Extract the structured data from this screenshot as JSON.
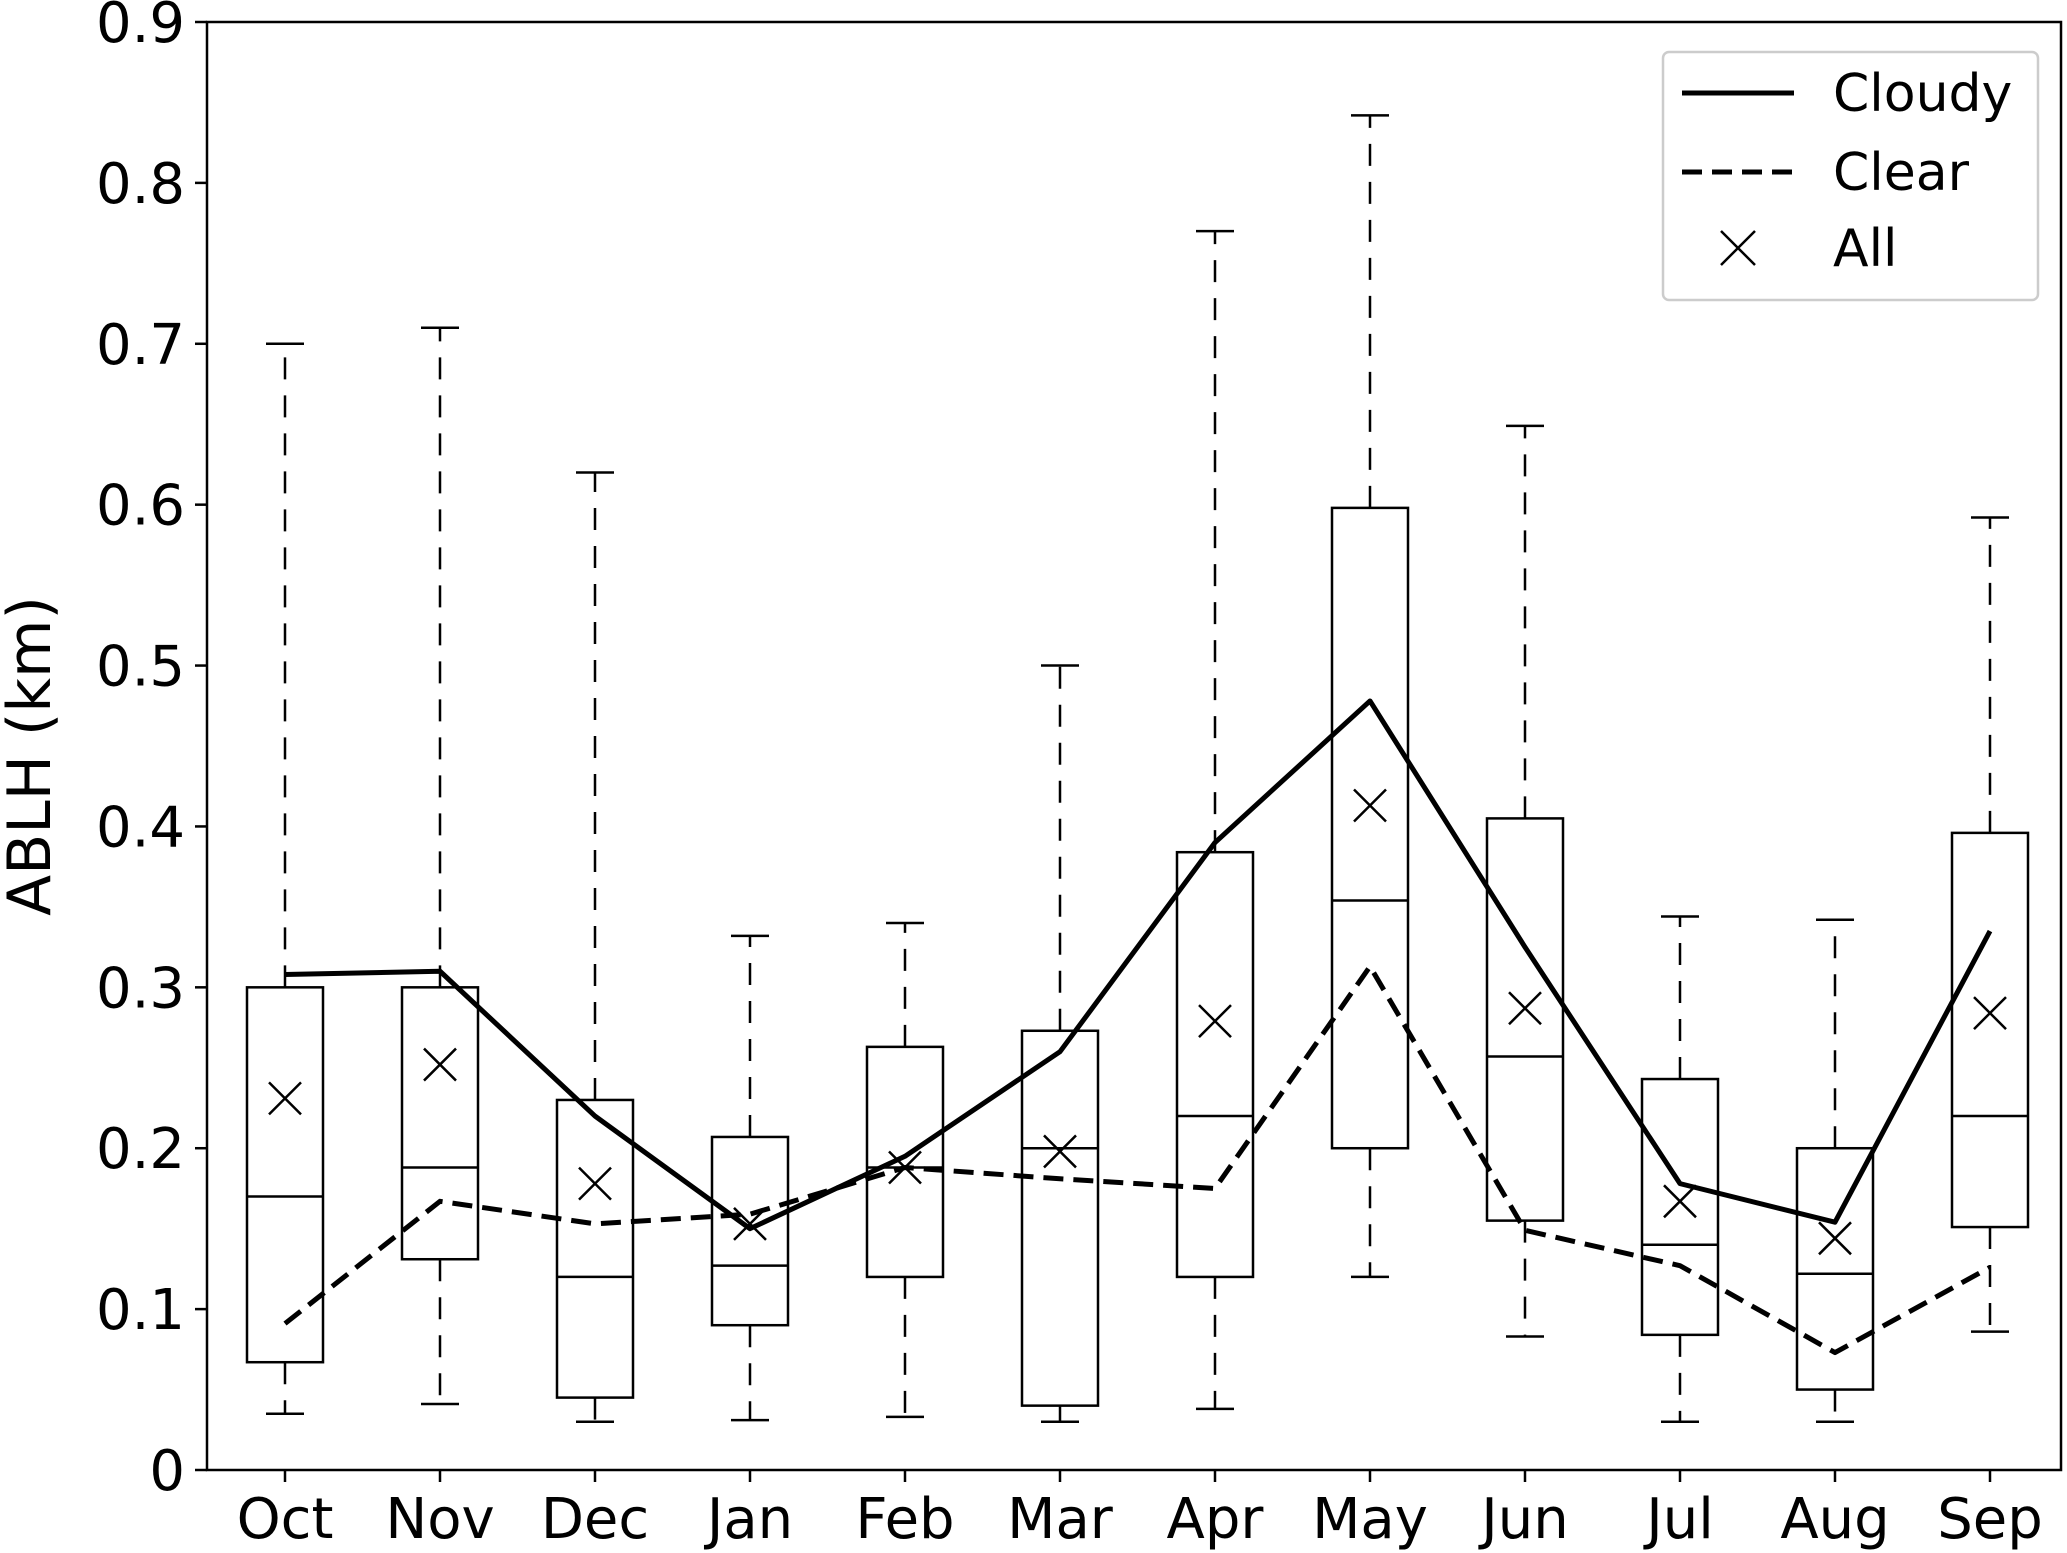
{
  "chart_data": {
    "type": "box",
    "title": "",
    "xlabel": "",
    "ylabel": "ABLH (km)",
    "ylim": [
      0,
      0.9
    ],
    "yticks": [
      "0",
      "0.1",
      "0.2",
      "0.3",
      "0.4",
      "0.5",
      "0.6",
      "0.7",
      "0.8",
      "0.9"
    ],
    "categories": [
      "Oct",
      "Nov",
      "Dec",
      "Jan",
      "Feb",
      "Mar",
      "Apr",
      "May",
      "Jun",
      "Jul",
      "Aug",
      "Sep"
    ],
    "boxes": [
      {
        "whisker_low": 0.035,
        "q1": 0.067,
        "median": 0.17,
        "q3": 0.3,
        "whisker_high": 0.7
      },
      {
        "whisker_low": 0.041,
        "q1": 0.131,
        "median": 0.188,
        "q3": 0.3,
        "whisker_high": 0.71
      },
      {
        "whisker_low": 0.03,
        "q1": 0.045,
        "median": 0.12,
        "q3": 0.23,
        "whisker_high": 0.62
      },
      {
        "whisker_low": 0.031,
        "q1": 0.09,
        "median": 0.127,
        "q3": 0.207,
        "whisker_high": 0.332
      },
      {
        "whisker_low": 0.033,
        "q1": 0.12,
        "median": 0.188,
        "q3": 0.263,
        "whisker_high": 0.34
      },
      {
        "whisker_low": 0.03,
        "q1": 0.04,
        "median": 0.2,
        "q3": 0.273,
        "whisker_high": 0.5
      },
      {
        "whisker_low": 0.038,
        "q1": 0.12,
        "median": 0.22,
        "q3": 0.384,
        "whisker_high": 0.77
      },
      {
        "whisker_low": 0.12,
        "q1": 0.2,
        "median": 0.354,
        "q3": 0.598,
        "whisker_high": 0.842
      },
      {
        "whisker_low": 0.083,
        "q1": 0.155,
        "median": 0.257,
        "q3": 0.405,
        "whisker_high": 0.649
      },
      {
        "whisker_low": 0.03,
        "q1": 0.084,
        "median": 0.14,
        "q3": 0.243,
        "whisker_high": 0.344
      },
      {
        "whisker_low": 0.03,
        "q1": 0.05,
        "median": 0.122,
        "q3": 0.2,
        "whisker_high": 0.342
      },
      {
        "whisker_low": 0.086,
        "q1": 0.151,
        "median": 0.22,
        "q3": 0.396,
        "whisker_high": 0.592
      }
    ],
    "series": [
      {
        "name": "Cloudy",
        "style": "solid",
        "values": [
          0.308,
          0.31,
          0.22,
          0.15,
          0.195,
          0.26,
          0.39,
          0.478,
          0.325,
          0.178,
          0.154,
          0.335
        ]
      },
      {
        "name": "Clear",
        "style": "dashed",
        "values": [
          0.091,
          0.167,
          0.153,
          0.159,
          0.188,
          0.181,
          0.175,
          0.313,
          0.149,
          0.127,
          0.073,
          0.126
        ]
      },
      {
        "name": "All",
        "style": "x-marker",
        "values": [
          0.231,
          0.252,
          0.178,
          0.153,
          0.188,
          0.198,
          0.279,
          0.413,
          0.287,
          0.167,
          0.144,
          0.284
        ]
      }
    ],
    "legend": {
      "position": "top-right",
      "entries": [
        "Cloudy",
        "Clear",
        "All"
      ]
    },
    "grid": false,
    "colors": {
      "line": "#000000",
      "background": "#ffffff",
      "legend_border": "#cccccc"
    }
  }
}
